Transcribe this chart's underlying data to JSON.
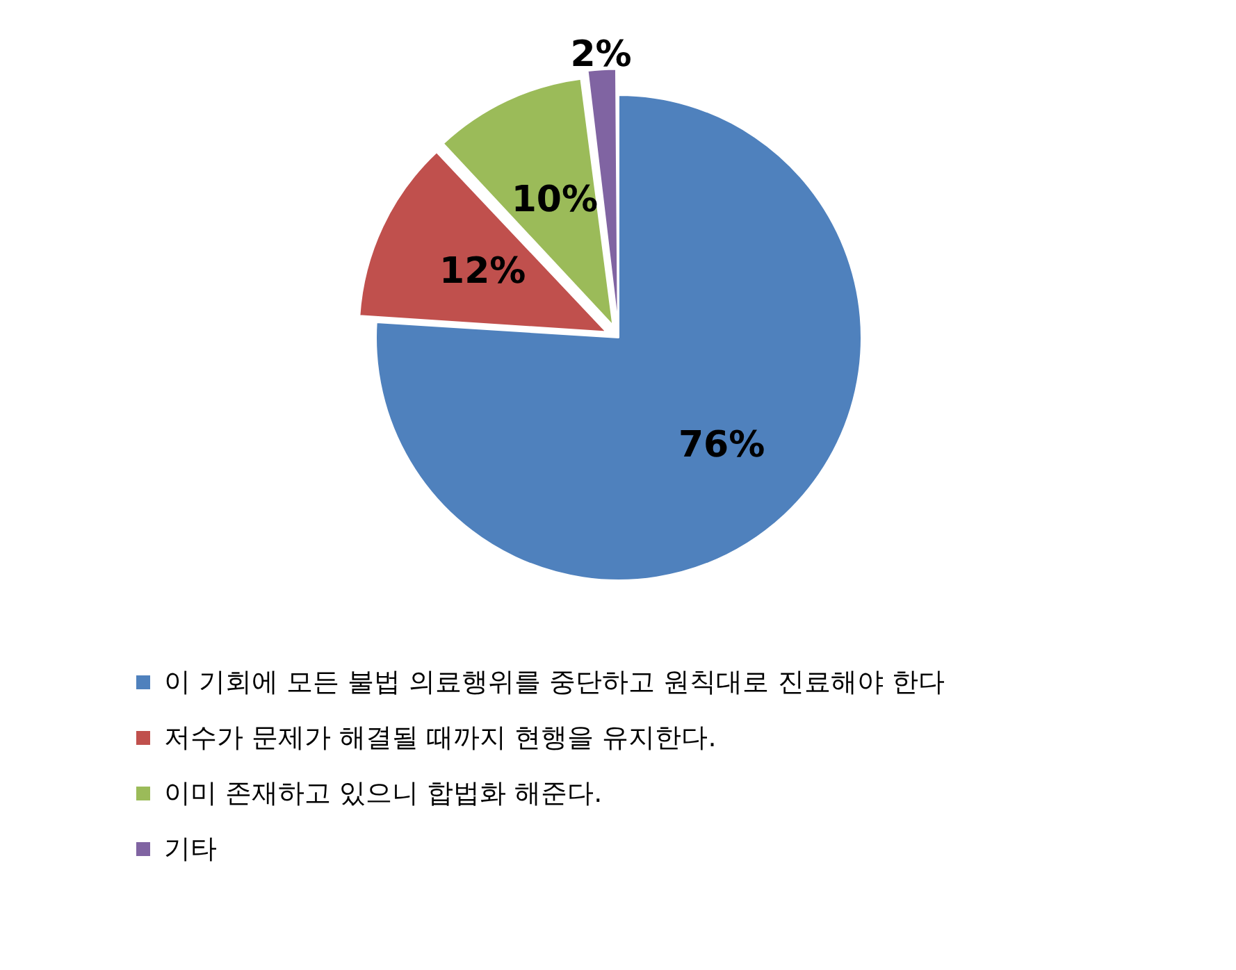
{
  "chart_data": {
    "type": "pie",
    "categories": [
      "이 기회에 모든 불법 의료행위를 중단하고 원칙대로 진료해야 한다",
      "저수가 문제가 해결될 때까지 현행을 유지한다.",
      "이미 존재하고 있으니 합법화 해준다.",
      "기타"
    ],
    "values": [
      76,
      12,
      10,
      2
    ],
    "colors": [
      "#4f81bd",
      "#c0504d",
      "#9bbb59",
      "#8064a2"
    ],
    "value_labels": [
      "76%",
      "12%",
      "10%",
      "2%"
    ],
    "legend": "bottom left"
  }
}
